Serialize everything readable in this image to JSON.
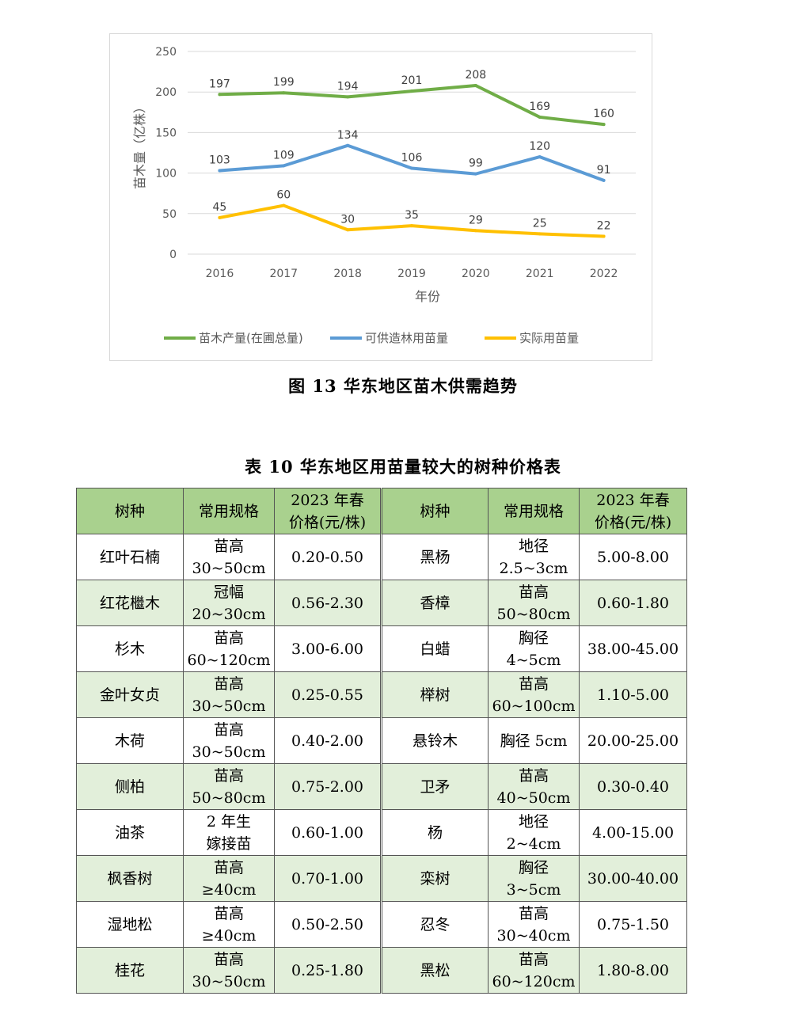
{
  "figure": {
    "caption": "图 13  华东地区苗木供需趋势"
  },
  "chart_data": {
    "type": "line",
    "title": "",
    "xlabel": "年份",
    "ylabel": "苗木量（亿株）",
    "ylim": [
      0,
      250
    ],
    "yticks": [
      "0",
      "50",
      "100",
      "150",
      "200",
      "250"
    ],
    "categories": [
      "2016",
      "2017",
      "2018",
      "2019",
      "2020",
      "2021",
      "2022"
    ],
    "grid": true,
    "legend_position": "bottom",
    "series": [
      {
        "name": "苗木产量(在圃总量)",
        "color": "#70ad47",
        "values": [
          197,
          199,
          194,
          201,
          208,
          169,
          160
        ]
      },
      {
        "name": "可供造林用苗量",
        "color": "#5b9bd5",
        "values": [
          103,
          109,
          134,
          106,
          99,
          120,
          91
        ]
      },
      {
        "name": "实际用苗量",
        "color": "#ffc000",
        "values": [
          45,
          60,
          30,
          35,
          29,
          25,
          22
        ]
      }
    ]
  },
  "table": {
    "caption": "表 10  华东地区用苗量较大的树种价格表",
    "headers": [
      "树种",
      "常用规格",
      "2023 年春\n价格(元/株)",
      "树种",
      "常用规格",
      "2023 年春\n价格(元/株)"
    ],
    "header_color": "#a9d18e",
    "alt_row_color": "#e2efda",
    "rows": [
      [
        "红叶石楠",
        "苗高\n30~50cm",
        "0.20-0.50",
        "黑杨",
        "地径\n2.5~3cm",
        "5.00-8.00"
      ],
      [
        "红花檵木",
        "冠幅\n20~30cm",
        "0.56-2.30",
        "香樟",
        "苗高\n50~80cm",
        "0.60-1.80"
      ],
      [
        "杉木",
        "苗高\n60~120cm",
        "3.00-6.00",
        "白蜡",
        "胸径\n4~5cm",
        "38.00-45.00"
      ],
      [
        "金叶女贞",
        "苗高\n30~50cm",
        "0.25-0.55",
        "榉树",
        "苗高\n60~100cm",
        "1.10-5.00"
      ],
      [
        "木荷",
        "苗高\n30~50cm",
        "0.40-2.00",
        "悬铃木",
        "胸径 5cm",
        "20.00-25.00"
      ],
      [
        "侧柏",
        "苗高\n50~80cm",
        "0.75-2.00",
        "卫矛",
        "苗高\n40~50cm",
        "0.30-0.40"
      ],
      [
        "油茶",
        "2 年生\n嫁接苗",
        "0.60-1.00",
        "杨",
        "地径\n2~4cm",
        "4.00-15.00"
      ],
      [
        "枫香树",
        "苗高\n≥40cm",
        "0.70-1.00",
        "栾树",
        "胸径\n3~5cm",
        "30.00-40.00"
      ],
      [
        "湿地松",
        "苗高\n≥40cm",
        "0.50-2.50",
        "忍冬",
        "苗高\n30~40cm",
        "0.75-1.50"
      ],
      [
        "桂花",
        "苗高\n30~50cm",
        "0.25-1.80",
        "黑松",
        "苗高\n60~120cm",
        "1.80-8.00"
      ]
    ]
  }
}
